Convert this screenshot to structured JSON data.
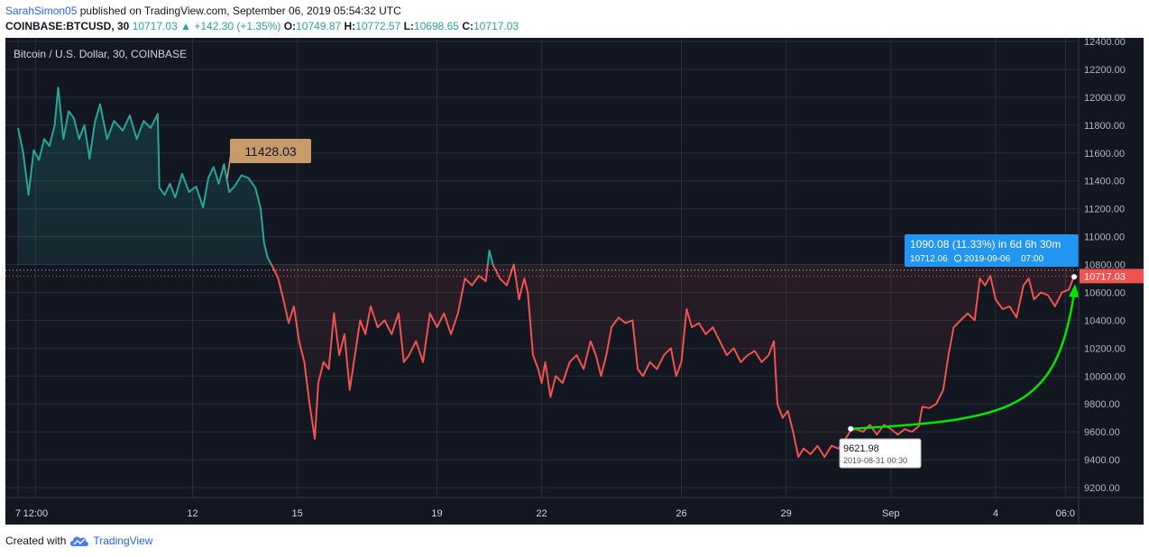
{
  "header": {
    "user": "SarahSimon05",
    "published_text": "published on TradingView.com, September 06, 2019 05:54:32 UTC",
    "symbol": "COINBASE:BTCUSD, 30",
    "last": "10717.03",
    "change": "+142.30 (+1.35%)",
    "o_label": "O:",
    "o_value": "10749.87",
    "h_label": "H:",
    "h_value": "10772.57",
    "l_label": "L:",
    "l_value": "10698.65",
    "c_label": "C:",
    "c_value": "10717.03"
  },
  "footer": {
    "created_with": "Created with",
    "brand": "TradingView"
  },
  "colors": {
    "background": "#131722",
    "up": "#26a69a",
    "down": "#ef5350",
    "arrow": "#00e600",
    "measure": "#2196f3",
    "callout": "#c79b6a",
    "price_label": "#ef5350"
  },
  "chart_data": {
    "type": "line",
    "title": "Bitcoin / U.S. Dollar, 30, COINBASE",
    "y_ticks": [
      "12400.00",
      "12200.00",
      "12000.00",
      "11800.00",
      "11600.00",
      "11400.00",
      "11200.00",
      "11000.00",
      "10800.00",
      "10600.00",
      "10400.00",
      "10200.00",
      "10000.00",
      "9800.00",
      "9600.00",
      "9400.00",
      "9200.00"
    ],
    "ylim": [
      9100,
      12400
    ],
    "x_ticks": [
      {
        "label": "7",
        "t": 0
      },
      {
        "label": "12:00",
        "t": 0.5
      },
      {
        "label": "12",
        "t": 5
      },
      {
        "label": "15",
        "t": 8
      },
      {
        "label": "19",
        "t": 12
      },
      {
        "label": "22",
        "t": 15
      },
      {
        "label": "26",
        "t": 19
      },
      {
        "label": "29",
        "t": 22
      },
      {
        "label": "Sep",
        "t": 25
      },
      {
        "label": "4",
        "t": 28
      },
      {
        "label": "06:0",
        "t": 30
      }
    ],
    "xlim": [
      0,
      30.7
    ],
    "series": [
      {
        "color_up": "#26a69a",
        "color_down": "#ef5350",
        "threshold": 10800,
        "points": [
          [
            0.0,
            11780
          ],
          [
            0.15,
            11600
          ],
          [
            0.3,
            11300
          ],
          [
            0.45,
            11620
          ],
          [
            0.6,
            11550
          ],
          [
            0.75,
            11700
          ],
          [
            0.9,
            11650
          ],
          [
            1.05,
            11800
          ],
          [
            1.15,
            12070
          ],
          [
            1.3,
            11700
          ],
          [
            1.45,
            11900
          ],
          [
            1.6,
            11850
          ],
          [
            1.75,
            11700
          ],
          [
            1.9,
            11800
          ],
          [
            2.05,
            11560
          ],
          [
            2.2,
            11820
          ],
          [
            2.35,
            11950
          ],
          [
            2.55,
            11700
          ],
          [
            2.75,
            11830
          ],
          [
            3.0,
            11760
          ],
          [
            3.2,
            11870
          ],
          [
            3.4,
            11700
          ],
          [
            3.6,
            11830
          ],
          [
            3.8,
            11780
          ],
          [
            4.0,
            11880
          ],
          [
            4.05,
            11350
          ],
          [
            4.2,
            11300
          ],
          [
            4.35,
            11380
          ],
          [
            4.5,
            11280
          ],
          [
            4.7,
            11450
          ],
          [
            4.9,
            11320
          ],
          [
            5.1,
            11360
          ],
          [
            5.3,
            11210
          ],
          [
            5.45,
            11420
          ],
          [
            5.6,
            11500
          ],
          [
            5.75,
            11380
          ],
          [
            5.9,
            11520
          ],
          [
            6.05,
            11320
          ],
          [
            6.2,
            11360
          ],
          [
            6.4,
            11440
          ],
          [
            6.6,
            11420
          ],
          [
            6.8,
            11350
          ],
          [
            6.95,
            11200
          ],
          [
            7.05,
            10950
          ],
          [
            7.15,
            10850
          ],
          [
            7.3,
            10780
          ],
          [
            7.45,
            10700
          ],
          [
            7.6,
            10550
          ],
          [
            7.75,
            10380
          ],
          [
            7.9,
            10500
          ],
          [
            8.05,
            10250
          ],
          [
            8.2,
            10100
          ],
          [
            8.35,
            9800
          ],
          [
            8.5,
            9550
          ],
          [
            8.6,
            9950
          ],
          [
            8.75,
            10100
          ],
          [
            8.9,
            10050
          ],
          [
            9.05,
            10450
          ],
          [
            9.2,
            10150
          ],
          [
            9.35,
            10300
          ],
          [
            9.5,
            9900
          ],
          [
            9.65,
            10150
          ],
          [
            9.8,
            10400
          ],
          [
            9.95,
            10300
          ],
          [
            10.1,
            10500
          ],
          [
            10.3,
            10350
          ],
          [
            10.5,
            10400
          ],
          [
            10.7,
            10300
          ],
          [
            10.9,
            10450
          ],
          [
            11.05,
            10100
          ],
          [
            11.2,
            10150
          ],
          [
            11.4,
            10250
          ],
          [
            11.6,
            10100
          ],
          [
            11.8,
            10450
          ],
          [
            12.0,
            10350
          ],
          [
            12.2,
            10450
          ],
          [
            12.4,
            10300
          ],
          [
            12.6,
            10450
          ],
          [
            12.8,
            10700
          ],
          [
            13.0,
            10650
          ],
          [
            13.2,
            10720
          ],
          [
            13.4,
            10680
          ],
          [
            13.5,
            10900
          ],
          [
            13.6,
            10800
          ],
          [
            13.8,
            10700
          ],
          [
            14.0,
            10650
          ],
          [
            14.2,
            10800
          ],
          [
            14.35,
            10550
          ],
          [
            14.5,
            10700
          ],
          [
            14.6,
            10600
          ],
          [
            14.75,
            10150
          ],
          [
            14.9,
            10050
          ],
          [
            15.0,
            9950
          ],
          [
            15.1,
            10100
          ],
          [
            15.25,
            9850
          ],
          [
            15.4,
            10000
          ],
          [
            15.6,
            9950
          ],
          [
            15.8,
            10100
          ],
          [
            16.0,
            10150
          ],
          [
            16.2,
            10050
          ],
          [
            16.4,
            10250
          ],
          [
            16.55,
            10150
          ],
          [
            16.7,
            10000
          ],
          [
            16.85,
            10150
          ],
          [
            17.0,
            10350
          ],
          [
            17.2,
            10420
          ],
          [
            17.4,
            10380
          ],
          [
            17.6,
            10400
          ],
          [
            17.75,
            10050
          ],
          [
            17.9,
            10000
          ],
          [
            18.1,
            10100
          ],
          [
            18.3,
            10050
          ],
          [
            18.5,
            10150
          ],
          [
            18.7,
            10200
          ],
          [
            18.85,
            10000
          ],
          [
            19.0,
            10100
          ],
          [
            19.15,
            10480
          ],
          [
            19.3,
            10350
          ],
          [
            19.5,
            10380
          ],
          [
            19.7,
            10300
          ],
          [
            19.9,
            10350
          ],
          [
            20.1,
            10250
          ],
          [
            20.3,
            10150
          ],
          [
            20.5,
            10200
          ],
          [
            20.7,
            10100
          ],
          [
            20.9,
            10150
          ],
          [
            21.1,
            10180
          ],
          [
            21.3,
            10100
          ],
          [
            21.5,
            10150
          ],
          [
            21.65,
            10250
          ],
          [
            21.75,
            9800
          ],
          [
            21.9,
            9700
          ],
          [
            22.05,
            9750
          ],
          [
            22.2,
            9600
          ],
          [
            22.35,
            9420
          ],
          [
            22.5,
            9480
          ],
          [
            22.7,
            9440
          ],
          [
            22.9,
            9500
          ],
          [
            23.1,
            9420
          ],
          [
            23.3,
            9500
          ],
          [
            23.5,
            9480
          ],
          [
            23.7,
            9550
          ],
          [
            23.85,
            9610
          ],
          [
            24.0,
            9620
          ],
          [
            24.2,
            9600
          ],
          [
            24.4,
            9650
          ],
          [
            24.6,
            9580
          ],
          [
            24.8,
            9650
          ],
          [
            25.0,
            9620
          ],
          [
            25.2,
            9580
          ],
          [
            25.4,
            9620
          ],
          [
            25.6,
            9600
          ],
          [
            25.8,
            9640
          ],
          [
            25.9,
            9780
          ],
          [
            26.1,
            9770
          ],
          [
            26.3,
            9800
          ],
          [
            26.5,
            9900
          ],
          [
            26.65,
            10150
          ],
          [
            26.8,
            10350
          ],
          [
            27.0,
            10400
          ],
          [
            27.2,
            10450
          ],
          [
            27.4,
            10400
          ],
          [
            27.55,
            10700
          ],
          [
            27.7,
            10650
          ],
          [
            27.85,
            10720
          ],
          [
            28.0,
            10550
          ],
          [
            28.2,
            10480
          ],
          [
            28.4,
            10500
          ],
          [
            28.6,
            10420
          ],
          [
            28.8,
            10650
          ],
          [
            28.95,
            10700
          ],
          [
            29.1,
            10550
          ],
          [
            29.3,
            10600
          ],
          [
            29.5,
            10580
          ],
          [
            29.7,
            10500
          ],
          [
            29.9,
            10600
          ],
          [
            30.1,
            10620
          ],
          [
            30.25,
            10717
          ]
        ]
      }
    ],
    "current_price": {
      "value": 10717.03,
      "label": "10717.03"
    },
    "dotted_line": 10760,
    "callout_high": {
      "label": "11428.03",
      "t": 6.3,
      "y": 11428.03
    },
    "start_point": {
      "t": 23.85,
      "y": 9621.98,
      "price_label": "9621.98",
      "date_label": "2019-08-31 00:30"
    },
    "end_point": {
      "t": 30.25,
      "y": 10712.06
    },
    "measure": {
      "line1": "1090.08 (11.33%) in 6d 6h 30m",
      "price": "10712.06",
      "date": "2019-09-06",
      "time": "07:00"
    }
  }
}
